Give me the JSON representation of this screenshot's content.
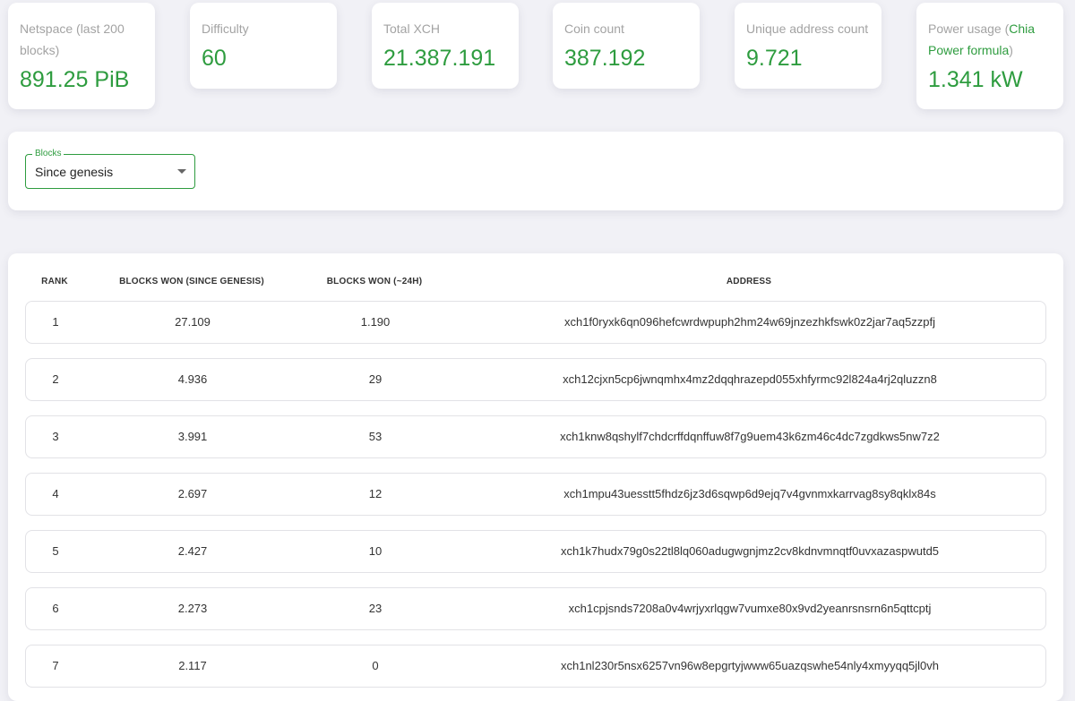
{
  "stats": [
    {
      "label": "Netspace (last 200 blocks)",
      "value": "891.25 PiB"
    },
    {
      "label": "Difficulty",
      "value": "60"
    },
    {
      "label": "Total XCH",
      "value": "21.387.191"
    },
    {
      "label": "Coin count",
      "value": "387.192"
    },
    {
      "label": "Unique address count",
      "value": "9.721"
    },
    {
      "label_prefix": "Power usage (",
      "label_link": "Chia Power formula",
      "label_suffix": ")",
      "value": "1.341 kW"
    }
  ],
  "filter": {
    "legend": "Blocks",
    "selected": "Since genesis"
  },
  "table": {
    "headers": [
      "RANK",
      "BLOCKS WON (SINCE GENESIS)",
      "BLOCKS WON (~24H)",
      "ADDRESS"
    ],
    "rows": [
      {
        "rank": "1",
        "since_genesis": "27.109",
        "last_24h": "1.190",
        "address": "xch1f0ryxk6qn096hefcwrdwpuph2hm24w69jnzezhkfswk0z2jar7aq5zzpfj"
      },
      {
        "rank": "2",
        "since_genesis": "4.936",
        "last_24h": "29",
        "address": "xch12cjxn5cp6jwnqmhx4mz2dqqhrazepd055xhfyrmc92l824a4rj2qluzzn8"
      },
      {
        "rank": "3",
        "since_genesis": "3.991",
        "last_24h": "53",
        "address": "xch1knw8qshylf7chdcrffdqnffuw8f7g9uem43k6zm46c4dc7zgdkws5nw7z2"
      },
      {
        "rank": "4",
        "since_genesis": "2.697",
        "last_24h": "12",
        "address": "xch1mpu43uesstt5fhdz6jz3d6sqwp6d9ejq7v4gvnmxkarrvag8sy8qklx84s"
      },
      {
        "rank": "5",
        "since_genesis": "2.427",
        "last_24h": "10",
        "address": "xch1k7hudx79g0s22tl8lq060adugwgnjmz2cv8kdnvmnqtf0uvxazaspwutd5"
      },
      {
        "rank": "6",
        "since_genesis": "2.273",
        "last_24h": "23",
        "address": "xch1cpjsnds7208a0v4wrjyxrlqgw7vumxe80x9vd2yeanrsnsrn6n5qttcptj"
      },
      {
        "rank": "7",
        "since_genesis": "2.117",
        "last_24h": "0",
        "address": "xch1nl230r5nsx6257vn96w8epgrtyjwww65uazqswhe54nly4xmyyqq5jl0vh"
      }
    ]
  },
  "colors": {
    "accent": "#2e9c3f",
    "label": "#a3a3a3",
    "background": "#f1f1f6"
  }
}
